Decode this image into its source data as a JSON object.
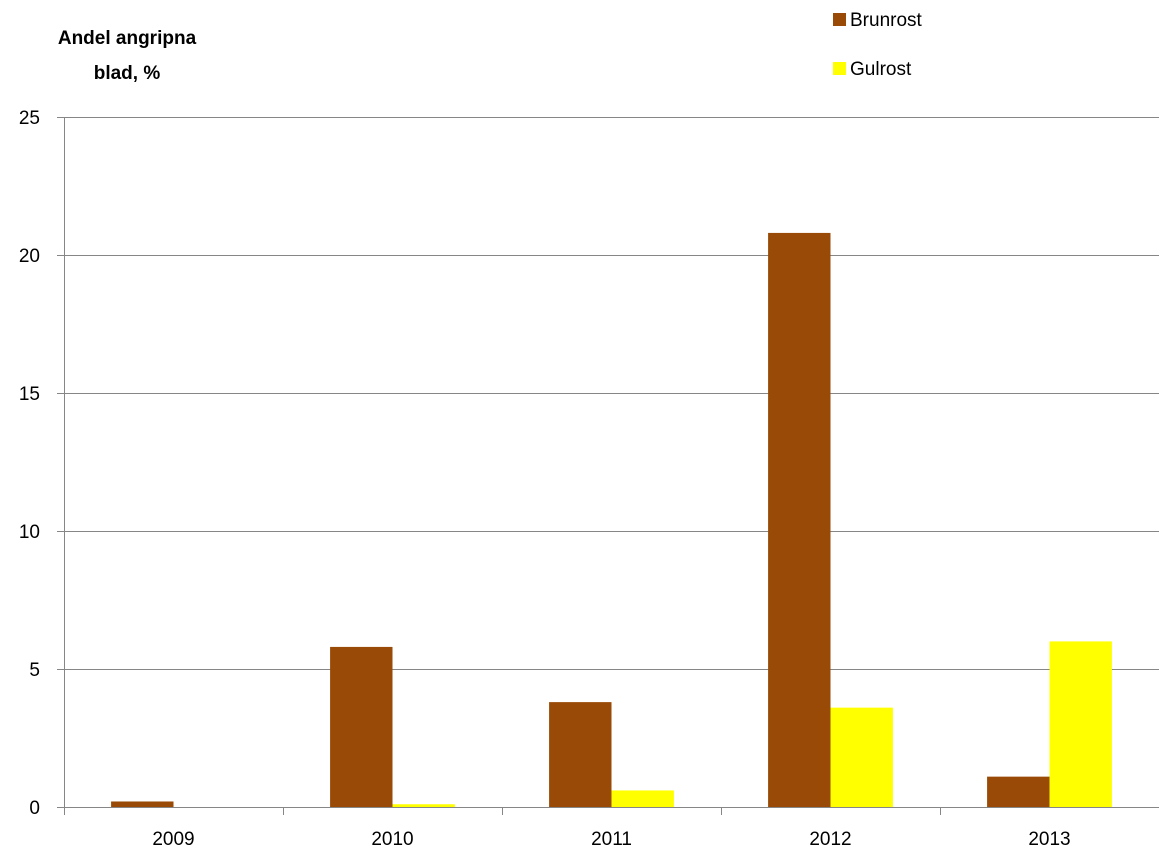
{
  "chart_data": {
    "type": "bar",
    "ylabel_lines": [
      "Andel angripna",
      "blad, %"
    ],
    "categories": [
      "2009",
      "2010",
      "2011",
      "2012",
      "2013"
    ],
    "series": [
      {
        "name": "Brunrost",
        "color": "#994A06",
        "values": [
          0.2,
          5.8,
          3.8,
          20.8,
          1.1
        ]
      },
      {
        "name": "Gulrost",
        "color": "#FFFF00",
        "values": [
          0.0,
          0.1,
          0.6,
          3.6,
          6.0
        ]
      }
    ],
    "ylim": [
      0,
      25
    ],
    "yticks": [
      0,
      5,
      10,
      15,
      20,
      25
    ],
    "grid": true,
    "legend_position": "top-right"
  }
}
